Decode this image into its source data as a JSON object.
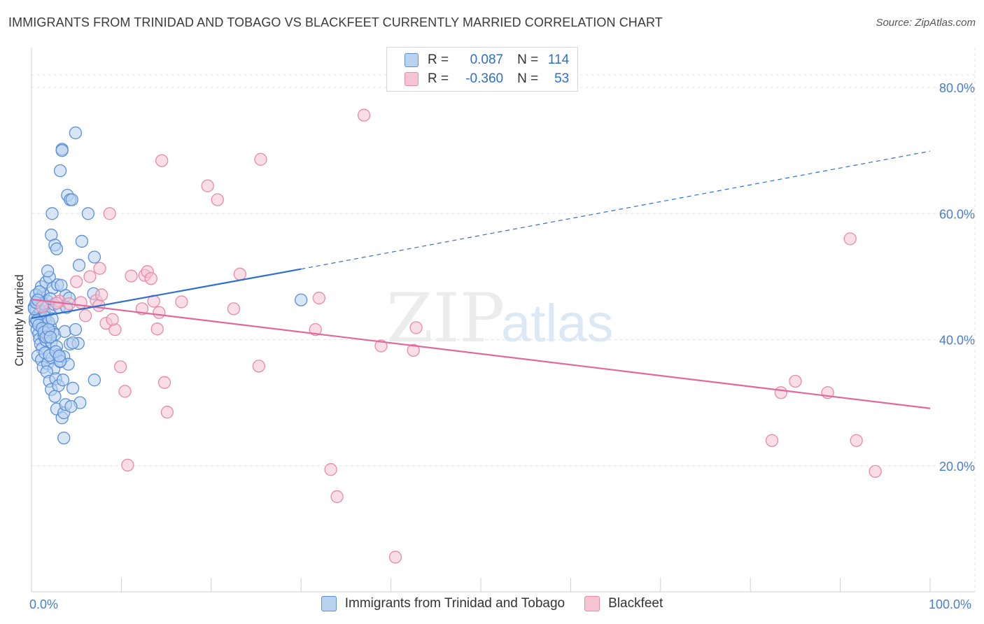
{
  "header": {
    "title": "IMMIGRANTS FROM TRINIDAD AND TOBAGO VS BLACKFEET CURRENTLY MARRIED CORRELATION CHART",
    "source": "Source: ZipAtlas.com"
  },
  "watermark": {
    "zip": "ZIP",
    "atlas": "atlas"
  },
  "legend": {
    "r_label": "R =",
    "n_label": "N =",
    "series1": {
      "r": "0.087",
      "n": "114"
    },
    "series2": {
      "r": "-0.360",
      "n": "53"
    }
  },
  "colors": {
    "blue_fill": "#b8d2f0",
    "blue_edge": "#5b8fd6",
    "blue_line": "#2f6fcc",
    "pink_fill": "#f6c3d3",
    "pink_edge": "#e88aa8",
    "pink_line": "#e0699a",
    "grid": "#e3e3e3",
    "tick_text": "#4a7fc8"
  },
  "chart_data": {
    "type": "scatter",
    "title": "IMMIGRANTS FROM TRINIDAD AND TOBAGO VS BLACKFEET CURRENTLY MARRIED CORRELATION CHART",
    "xlabel": "",
    "ylabel": "Currently Married",
    "xlim": [
      0,
      100
    ],
    "ylim": [
      0,
      85
    ],
    "x_tick_labels": [
      "0.0%",
      "100.0%"
    ],
    "y_ticks": [
      20,
      40,
      60,
      80
    ],
    "y_tick_labels": [
      "20.0%",
      "40.0%",
      "60.0%",
      "80.0%"
    ],
    "series": [
      {
        "name": "Immigrants from Trinidad and Tobago",
        "r": 0.087,
        "n": 114,
        "trend": {
          "x0": 0,
          "y0": 43.4,
          "x1": 30,
          "y1": 51.2,
          "x_dash_end": 100,
          "y_dash_end": 69.9
        },
        "points": [
          [
            0.3,
            45.2
          ],
          [
            0.5,
            44.6
          ],
          [
            0.6,
            46.2
          ],
          [
            0.7,
            43.9
          ],
          [
            0.4,
            42.8
          ],
          [
            0.8,
            45.8
          ],
          [
            0.9,
            44.1
          ],
          [
            1.0,
            46.8
          ],
          [
            1.1,
            43.2
          ],
          [
            0.6,
            41.6
          ],
          [
            1.2,
            42.4
          ],
          [
            0.8,
            40.9
          ],
          [
            1.4,
            45.4
          ],
          [
            1.5,
            44.0
          ],
          [
            1.3,
            47.3
          ],
          [
            1.6,
            43.0
          ],
          [
            1.7,
            41.8
          ],
          [
            1.8,
            46.1
          ],
          [
            2.0,
            44.7
          ],
          [
            2.1,
            42.1
          ],
          [
            0.9,
            40.1
          ],
          [
            1.0,
            39.3
          ],
          [
            1.2,
            38.6
          ],
          [
            1.4,
            40.6
          ],
          [
            1.6,
            39.9
          ],
          [
            1.9,
            40.4
          ],
          [
            2.2,
            39.6
          ],
          [
            2.4,
            41.2
          ],
          [
            2.6,
            40.8
          ],
          [
            2.8,
            38.9
          ],
          [
            0.7,
            37.4
          ],
          [
            1.1,
            36.8
          ],
          [
            1.3,
            35.6
          ],
          [
            1.5,
            37.9
          ],
          [
            1.8,
            36.2
          ],
          [
            2.3,
            37.1
          ],
          [
            2.5,
            35.4
          ],
          [
            2.9,
            37.6
          ],
          [
            3.2,
            36.5
          ],
          [
            3.6,
            37.3
          ],
          [
            1.7,
            34.9
          ],
          [
            2.0,
            33.4
          ],
          [
            2.2,
            32.1
          ],
          [
            2.7,
            33.8
          ],
          [
            3.0,
            32.7
          ],
          [
            3.5,
            33.6
          ],
          [
            4.6,
            32.3
          ],
          [
            5.4,
            30.0
          ],
          [
            7.0,
            33.6
          ],
          [
            2.6,
            31.0
          ],
          [
            2.8,
            29.0
          ],
          [
            3.4,
            27.6
          ],
          [
            3.6,
            28.4
          ],
          [
            3.8,
            29.7
          ],
          [
            4.4,
            29.4
          ],
          [
            3.6,
            24.4
          ],
          [
            1.1,
            48.4
          ],
          [
            1.6,
            49.1
          ],
          [
            2.0,
            49.9
          ],
          [
            1.8,
            50.9
          ],
          [
            2.4,
            48.2
          ],
          [
            2.9,
            48.7
          ],
          [
            3.3,
            48.6
          ],
          [
            3.8,
            47.0
          ],
          [
            4.2,
            46.6
          ],
          [
            6.9,
            47.3
          ],
          [
            2.2,
            56.6
          ],
          [
            2.6,
            55.0
          ],
          [
            2.8,
            54.4
          ],
          [
            5.6,
            55.6
          ],
          [
            7.0,
            53.1
          ],
          [
            5.3,
            51.8
          ],
          [
            2.3,
            60.0
          ],
          [
            4.0,
            62.9
          ],
          [
            4.3,
            62.2
          ],
          [
            4.5,
            62.2
          ],
          [
            6.3,
            60.0
          ],
          [
            3.2,
            66.8
          ],
          [
            3.4,
            70.2
          ],
          [
            3.4,
            70.0
          ],
          [
            4.9,
            72.8
          ],
          [
            1.0,
            44.4
          ],
          [
            1.3,
            45.7
          ],
          [
            1.5,
            43.6
          ],
          [
            1.9,
            42.8
          ],
          [
            2.3,
            43.3
          ],
          [
            2.5,
            45.6
          ],
          [
            3.1,
            45.1
          ],
          [
            3.9,
            45.1
          ],
          [
            0.5,
            47.1
          ],
          [
            0.9,
            47.6
          ],
          [
            2.1,
            46.5
          ],
          [
            3.7,
            41.3
          ],
          [
            4.3,
            39.3
          ],
          [
            4.9,
            41.6
          ],
          [
            5.2,
            39.4
          ],
          [
            4.6,
            39.5
          ],
          [
            4.1,
            36.1
          ],
          [
            3.2,
            36.6
          ],
          [
            2.0,
            37.5
          ],
          [
            30.0,
            46.3
          ],
          [
            0.4,
            43.4
          ],
          [
            0.6,
            43.0
          ],
          [
            0.8,
            42.3
          ],
          [
            1.2,
            41.8
          ],
          [
            1.4,
            41.2
          ],
          [
            1.6,
            40.4
          ],
          [
            0.3,
            44.9
          ],
          [
            0.5,
            45.9
          ],
          [
            0.7,
            46.3
          ],
          [
            1.9,
            41.6
          ],
          [
            2.1,
            40.4
          ],
          [
            2.7,
            38.1
          ],
          [
            3.1,
            37.4
          ]
        ]
      },
      {
        "name": "Blackfeet",
        "r": -0.36,
        "n": 53,
        "trend": {
          "x0": 0,
          "y0": 46.4,
          "x1": 100,
          "y1": 29.1
        },
        "points": [
          [
            1.2,
            45.2
          ],
          [
            3.1,
            46.1
          ],
          [
            4.2,
            45.7
          ],
          [
            5.5,
            45.9
          ],
          [
            6.0,
            43.8
          ],
          [
            6.5,
            50.0
          ],
          [
            7.2,
            46.2
          ],
          [
            7.5,
            45.4
          ],
          [
            7.6,
            51.3
          ],
          [
            7.8,
            47.1
          ],
          [
            8.3,
            42.6
          ],
          [
            8.7,
            60.0
          ],
          [
            9.3,
            41.6
          ],
          [
            9.9,
            35.7
          ],
          [
            10.4,
            31.8
          ],
          [
            10.7,
            20.1
          ],
          [
            11.1,
            50.1
          ],
          [
            12.3,
            44.9
          ],
          [
            12.6,
            50.2
          ],
          [
            12.9,
            50.8
          ],
          [
            13.3,
            49.7
          ],
          [
            13.6,
            46.1
          ],
          [
            14.0,
            41.7
          ],
          [
            14.5,
            68.4
          ],
          [
            14.8,
            33.2
          ],
          [
            15.1,
            28.5
          ],
          [
            16.7,
            46.0
          ],
          [
            19.6,
            64.4
          ],
          [
            20.7,
            62.2
          ],
          [
            22.5,
            44.9
          ],
          [
            23.2,
            50.4
          ],
          [
            25.3,
            35.8
          ],
          [
            25.5,
            68.6
          ],
          [
            31.6,
            41.6
          ],
          [
            32.0,
            46.6
          ],
          [
            33.3,
            19.4
          ],
          [
            34.0,
            15.1
          ],
          [
            37.0,
            75.6
          ],
          [
            38.9,
            39.0
          ],
          [
            40.5,
            5.5
          ],
          [
            42.5,
            38.3
          ],
          [
            42.8,
            41.9
          ],
          [
            83.4,
            31.6
          ],
          [
            85.0,
            33.4
          ],
          [
            82.4,
            24.0
          ],
          [
            88.6,
            31.6
          ],
          [
            91.1,
            56.0
          ],
          [
            91.8,
            24.0
          ],
          [
            93.9,
            19.1
          ],
          [
            5.0,
            49.2
          ],
          [
            9.0,
            43.2
          ],
          [
            14.2,
            44.3
          ],
          [
            2.8,
            45.8
          ]
        ]
      }
    ]
  }
}
